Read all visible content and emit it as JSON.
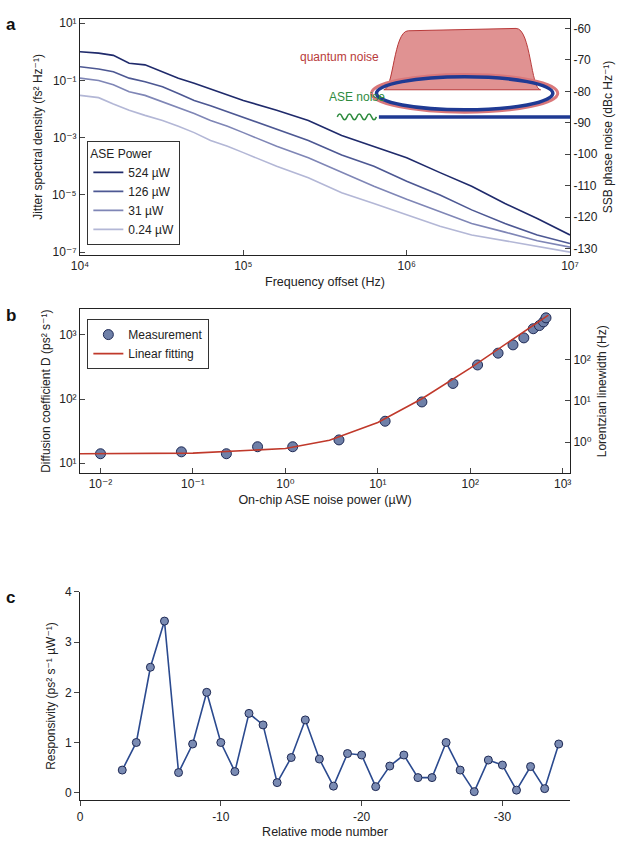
{
  "chart_data": [
    {
      "type": "line",
      "panel": "a",
      "xlabel": "Frequency offset (Hz)",
      "ylabel": "Jitter spectral density (fs² Hz⁻¹)",
      "y2label": "SSB phase noise (dBc Hz⁻¹)",
      "log": true,
      "xlim": [
        10000,
        10000000
      ],
      "xticks": [
        {
          "value": 10000,
          "label": "10⁴"
        },
        {
          "value": 100000,
          "label": "10⁵"
        },
        {
          "value": 1000000,
          "label": "10⁶"
        },
        {
          "value": 10000000,
          "label": "10⁷"
        }
      ],
      "ylim": [
        8e-08,
        14
      ],
      "yticks": [
        {
          "value": 1e-07,
          "label": "10⁻⁷"
        },
        {
          "value": 1e-05,
          "label": "10⁻⁵"
        },
        {
          "value": 0.001,
          "label": "10⁻³"
        },
        {
          "value": 0.1,
          "label": "10⁻¹"
        },
        {
          "value": 10,
          "label": "10¹"
        }
      ],
      "y2lim": [
        -132,
        -57
      ],
      "y2ticks": [
        -130,
        -120,
        -110,
        -100,
        -90,
        -80,
        -70,
        -60
      ],
      "legend": "lower left",
      "legend_title": "ASE Power",
      "x": [
        10000,
        13000,
        16000,
        20000,
        25000,
        32000,
        40000,
        50000,
        63000,
        80000,
        100000,
        160000,
        250000,
        400000,
        630000,
        1000000,
        1600000,
        2500000,
        4000000,
        6300000,
        10000000
      ],
      "series": [
        {
          "name": "524 µW",
          "color": "#1f2a6b",
          "values": [
            1.0,
            0.9,
            0.75,
            0.4,
            0.35,
            0.2,
            0.12,
            0.08,
            0.05,
            0.03,
            0.02,
            0.009,
            0.004,
            0.0012,
            0.0005,
            0.0002,
            6e-05,
            2e-05,
            5e-06,
            1.5e-06,
            4e-07
          ]
        },
        {
          "name": "126 µW",
          "color": "#4d5893",
          "values": [
            0.3,
            0.25,
            0.2,
            0.12,
            0.09,
            0.06,
            0.035,
            0.02,
            0.013,
            0.008,
            0.005,
            0.002,
            0.0008,
            0.00025,
            0.0001,
            3e-05,
            1e-05,
            3e-06,
            1e-06,
            4e-07,
            2e-07
          ]
        },
        {
          "name": "31 µW",
          "color": "#7f86b6",
          "values": [
            0.12,
            0.1,
            0.07,
            0.04,
            0.03,
            0.018,
            0.011,
            0.007,
            0.004,
            0.0025,
            0.0015,
            0.0005,
            0.0002,
            6e-05,
            2e-05,
            7e-06,
            2.5e-06,
            1e-06,
            5e-07,
            2.5e-07,
            1.5e-07
          ]
        },
        {
          "name": "0.24 µW",
          "color": "#b3b7d6",
          "values": [
            0.03,
            0.025,
            0.015,
            0.009,
            0.006,
            0.004,
            0.0025,
            0.0015,
            0.0008,
            0.0005,
            0.0003,
            0.0001,
            4e-05,
            1.2e-05,
            5e-06,
            2e-06,
            8e-07,
            4e-07,
            2.5e-07,
            1.5e-07,
            1e-07
          ]
        }
      ],
      "annotations": [
        {
          "text": "quantum noise",
          "color": "#b83a3a"
        },
        {
          "text": "ASE noise",
          "color": "#2e8b3e"
        }
      ]
    },
    {
      "type": "scatter",
      "panel": "b",
      "xlabel": "On-chip ASE noise power (µW)",
      "ylabel": "Diffusion coefficient D (ps² s⁻¹)",
      "y2label": "Lorentzian linewidth (Hz)",
      "log": true,
      "xlim": [
        0.006,
        1200
      ],
      "xticks": [
        {
          "value": 0.01,
          "label": "10⁻²"
        },
        {
          "value": 0.1,
          "label": "10⁻¹"
        },
        {
          "value": 1,
          "label": "10⁰"
        },
        {
          "value": 10,
          "label": "10¹"
        },
        {
          "value": 100,
          "label": "10²"
        },
        {
          "value": 1000,
          "label": "10³"
        }
      ],
      "ylim": [
        7,
        2500
      ],
      "yticks": [
        {
          "value": 10,
          "label": "10¹"
        },
        {
          "value": 100,
          "label": "10²"
        },
        {
          "value": 1000,
          "label": "10³"
        }
      ],
      "y2lim": [
        0.18,
        1600
      ],
      "y2ticks": [
        {
          "value": 1,
          "label": "10⁰"
        },
        {
          "value": 10,
          "label": "10¹"
        },
        {
          "value": 100,
          "label": "10²"
        }
      ],
      "legend": "upper left",
      "series": [
        {
          "name": "Measurement",
          "type": "scatter",
          "marker": "circle",
          "color": "#6f80a8",
          "x": [
            0.01,
            0.075,
            0.23,
            0.5,
            1.2,
            3.8,
            12,
            30,
            65,
            120,
            200,
            290,
            380,
            480,
            560,
            620,
            660
          ],
          "values": [
            14,
            15,
            14,
            18,
            18,
            23,
            45,
            90,
            175,
            340,
            520,
            700,
            900,
            1250,
            1400,
            1600,
            1850
          ]
        },
        {
          "name": "Linear fitting",
          "type": "line",
          "color": "#c0392b",
          "x": [
            0.006,
            0.01,
            0.1,
            1,
            3,
            10,
            30,
            100,
            300,
            700
          ],
          "values": [
            14,
            14,
            14.3,
            16.9,
            22.7,
            43,
            101,
            304,
            884,
            2044
          ]
        }
      ]
    },
    {
      "type": "line",
      "panel": "c",
      "marker": "circle",
      "color": "#2b4a8f",
      "xlabel": "Relative mode number",
      "ylabel": "Responsivity (ps² s⁻¹ µW⁻¹)",
      "xlim": [
        0,
        -34.8
      ],
      "xticks": [
        0,
        -10,
        -20,
        -30
      ],
      "ylim": [
        -0.15,
        4
      ],
      "yticks": [
        0,
        1,
        2,
        3,
        4
      ],
      "x": [
        -3,
        -4,
        -5,
        -6,
        -7,
        -8,
        -9,
        -10,
        -11,
        -12,
        -13,
        -14,
        -15,
        -16,
        -17,
        -18,
        -19,
        -20,
        -21,
        -22,
        -23,
        -24,
        -25,
        -26,
        -27,
        -28,
        -29,
        -30,
        -31,
        -32,
        -33,
        -34
      ],
      "values": [
        0.45,
        1.0,
        2.5,
        3.42,
        0.4,
        0.97,
        2.0,
        1.0,
        0.42,
        1.58,
        1.35,
        0.2,
        0.7,
        1.45,
        0.67,
        0.13,
        0.78,
        0.75,
        0.12,
        0.53,
        0.75,
        0.3,
        0.3,
        1.0,
        0.45,
        0.02,
        0.65,
        0.55,
        0.05,
        0.52,
        0.08,
        0.97
      ]
    }
  ]
}
